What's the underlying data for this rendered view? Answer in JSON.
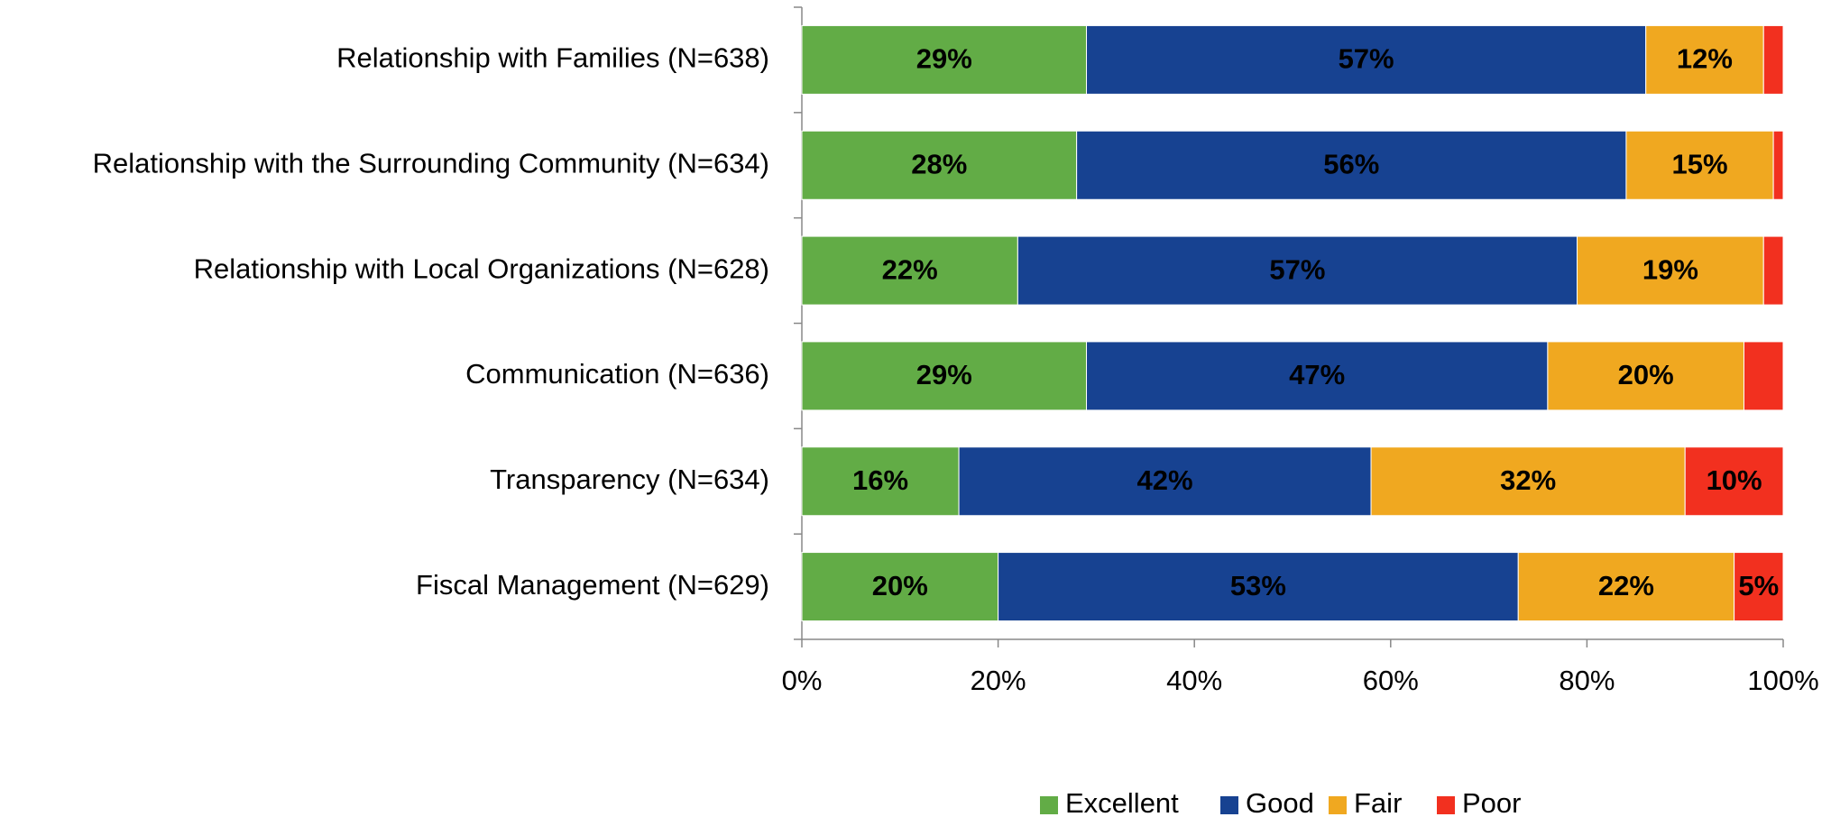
{
  "chart_data": {
    "type": "stacked-bar-horizontal",
    "categories": [
      "Relationship with Families (N=638)",
      "Relationship with the Surrounding Community (N=634)",
      "Relationship with Local Organizations (N=628)",
      "Communication (N=636)",
      "Transparency (N=634)",
      "Fiscal Management (N=629)"
    ],
    "series": [
      {
        "name": "Excellent",
        "color": "#62ac46",
        "label_color": "#000000",
        "values": [
          29,
          28,
          22,
          29,
          16,
          20
        ],
        "value_labels": [
          "29%",
          "28%",
          "22%",
          "29%",
          "16%",
          "20%"
        ]
      },
      {
        "name": "Good",
        "color": "#174291",
        "label_color": "#ffffff",
        "values": [
          57,
          56,
          57,
          47,
          42,
          53
        ],
        "value_labels": [
          "57%",
          "56%",
          "57%",
          "47%",
          "42%",
          "53%"
        ]
      },
      {
        "name": "Fair",
        "color": "#f0a820",
        "label_color": "#000000",
        "values": [
          12,
          15,
          19,
          20,
          32,
          22
        ],
        "value_labels": [
          "12%",
          "15%",
          "19%",
          "20%",
          "32%",
          "22%"
        ]
      },
      {
        "name": "Poor",
        "color": "#f2301f",
        "label_color": "#000000",
        "values": [
          2,
          1,
          2,
          4,
          10,
          5
        ],
        "value_labels": [
          null,
          null,
          null,
          null,
          "10%",
          "5%"
        ]
      }
    ],
    "xlim": [
      0,
      100
    ],
    "xticks": [
      {
        "value": 0,
        "label": "0%"
      },
      {
        "value": 20,
        "label": "20%"
      },
      {
        "value": 40,
        "label": "40%"
      },
      {
        "value": 60,
        "label": "60%"
      },
      {
        "value": 80,
        "label": "80%"
      },
      {
        "value": 100,
        "label": "100%"
      }
    ],
    "legend": "bottom"
  }
}
